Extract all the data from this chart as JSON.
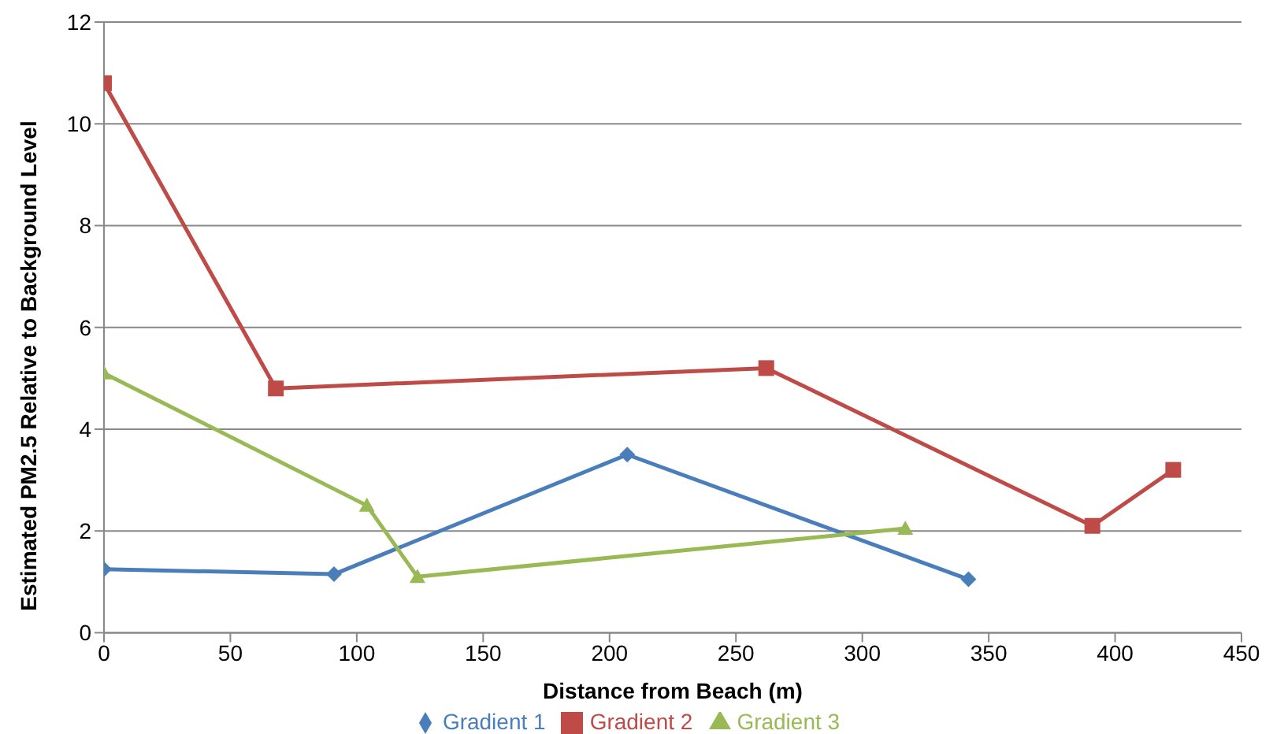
{
  "chart_data": {
    "type": "line",
    "xlabel": "Distance from Beach (m)",
    "ylabel": "Estimated PM2.5 Relative to Background Level",
    "xlim": [
      0,
      450
    ],
    "xticks": [
      0,
      50,
      100,
      150,
      200,
      250,
      300,
      350,
      400,
      450
    ],
    "ylim": [
      0,
      12
    ],
    "yticks": [
      0,
      2,
      4,
      6,
      8,
      10,
      12
    ],
    "grid": "y",
    "legend": "bottom",
    "series": [
      {
        "name": "Gradient 1",
        "color": "#4a7ebb",
        "marker": "diamond",
        "x": [
          0,
          91,
          207,
          342
        ],
        "values": [
          1.25,
          1.15,
          3.5,
          1.05
        ]
      },
      {
        "name": "Gradient 2",
        "color": "#be4b48",
        "marker": "square",
        "x": [
          0,
          68,
          262,
          391,
          423
        ],
        "values": [
          10.8,
          4.8,
          5.2,
          2.1,
          3.2
        ]
      },
      {
        "name": "Gradient 3",
        "color": "#98b954",
        "marker": "triangle",
        "x": [
          0,
          104,
          124,
          317
        ],
        "values": [
          5.1,
          2.5,
          1.1,
          2.05
        ]
      }
    ]
  }
}
